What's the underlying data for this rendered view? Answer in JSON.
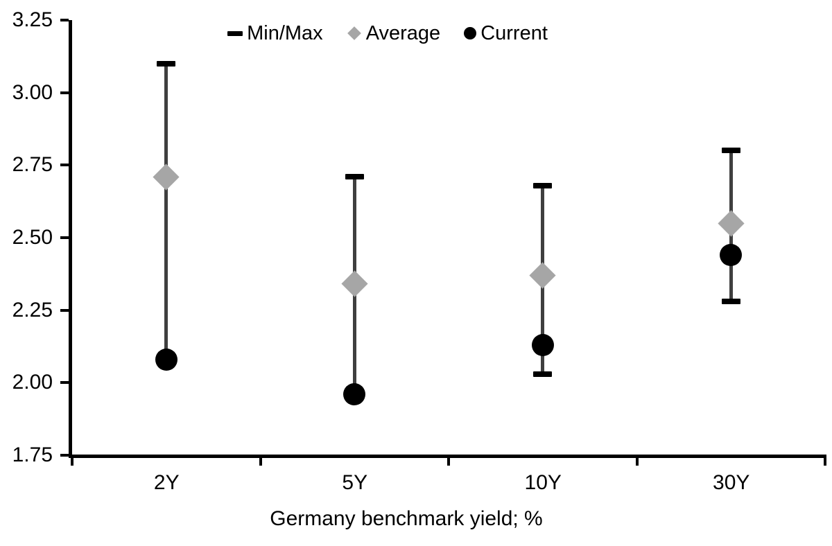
{
  "chart_data": {
    "type": "scatter",
    "subtype": "min-max-range-with-markers",
    "title": "",
    "xlabel": "Germany benchmark yield; %",
    "ylabel": "",
    "ylim": [
      1.75,
      3.25
    ],
    "y_tick_labels": [
      "3.25",
      "3.00",
      "2.75",
      "2.50",
      "2.25",
      "2.00",
      "1.75"
    ],
    "y_tick_values": [
      3.25,
      3.0,
      2.75,
      2.5,
      2.25,
      2.0,
      1.75
    ],
    "categories": [
      "2Y",
      "5Y",
      "10Y",
      "30Y"
    ],
    "legend_position": "top",
    "grid": false,
    "legend": [
      {
        "label": "Min/Max",
        "marker": "dash",
        "color": "#000000"
      },
      {
        "label": "Average",
        "marker": "diamond",
        "color": "#a6a6a6"
      },
      {
        "label": "Current",
        "marker": "circle",
        "color": "#000000"
      }
    ],
    "series": [
      {
        "name": "Max",
        "values": [
          3.1,
          2.71,
          2.68,
          2.8
        ]
      },
      {
        "name": "Min",
        "values": [
          2.08,
          1.96,
          2.03,
          2.28
        ]
      },
      {
        "name": "Average",
        "values": [
          2.71,
          2.34,
          2.37,
          2.55
        ]
      },
      {
        "name": "Current",
        "values": [
          2.08,
          1.96,
          2.13,
          2.44
        ]
      }
    ],
    "colors": {
      "range_line": "#3f3f3f",
      "minmax_cap": "#000000",
      "average_marker": "#a6a6a6",
      "current_marker": "#000000",
      "axis": "#000000",
      "text": "#000000"
    }
  }
}
